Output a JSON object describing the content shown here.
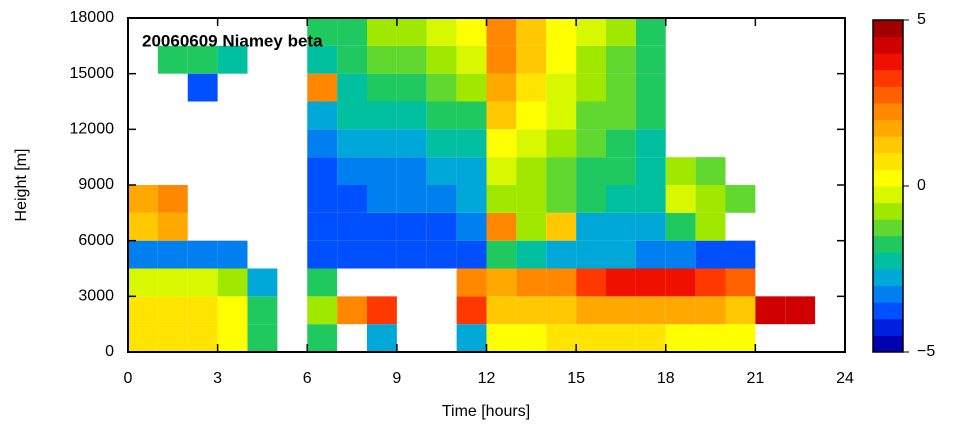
{
  "chart_data": {
    "type": "heatmap",
    "title": "20060609 Niamey beta",
    "x_label": "Time [hours]",
    "y_label": "Height [m]",
    "xlim": [
      0,
      24
    ],
    "xticks": [
      0,
      3,
      6,
      9,
      12,
      15,
      18,
      21,
      24
    ],
    "ylim": [
      0,
      18000
    ],
    "yticks": [
      0,
      3000,
      6000,
      9000,
      12000,
      15000,
      18000
    ],
    "xbins": [
      0,
      1,
      2,
      3,
      4,
      5,
      6,
      7,
      8,
      9,
      10,
      11,
      12,
      13,
      14,
      15,
      16,
      17,
      18,
      19,
      20,
      21,
      22,
      23,
      24
    ],
    "ybins": [
      0,
      1500,
      3000,
      4500,
      6000,
      7500,
      9000,
      10500,
      12000,
      13500,
      15000,
      16500,
      18000
    ],
    "z": [
      [
        0.5,
        0.5,
        0.5,
        0,
        -2,
        null,
        -2,
        null,
        -3,
        null,
        null,
        -3,
        0,
        0,
        0.5,
        0.5,
        0.5,
        0.5,
        0,
        0,
        0,
        null,
        null,
        null
      ],
      [
        0.5,
        0.5,
        0.5,
        0,
        -2,
        null,
        -1,
        2,
        3,
        null,
        null,
        3,
        1,
        1,
        1,
        1.5,
        1.5,
        1.5,
        1.5,
        1.5,
        1,
        4,
        4,
        null
      ],
      [
        -0.5,
        -0.5,
        -0.5,
        -1,
        -3,
        null,
        -2,
        null,
        null,
        null,
        null,
        2,
        1.5,
        2,
        2,
        3,
        3.5,
        3.5,
        3.5,
        3,
        2.5,
        null,
        null,
        null
      ],
      [
        -3.5,
        -3.5,
        -3.5,
        -3.5,
        null,
        null,
        -4,
        -4,
        -4,
        -4,
        -4,
        -4,
        -2,
        -2.5,
        -3,
        -3,
        -3,
        -3.5,
        -3.5,
        -4,
        -4,
        null,
        null,
        null
      ],
      [
        1,
        1.5,
        null,
        null,
        null,
        null,
        -4,
        -4,
        -4,
        -4,
        -4,
        -3.5,
        2,
        -1,
        1,
        -3,
        -3,
        -3,
        -2,
        -1,
        null,
        null,
        null,
        null
      ],
      [
        1.5,
        2,
        null,
        null,
        null,
        null,
        -4,
        -4,
        -3.5,
        -3.5,
        -3.5,
        -3,
        -1,
        -1,
        -1.5,
        -2,
        -2.5,
        -2.5,
        -0.5,
        -1,
        -1.5,
        null,
        null,
        null
      ],
      [
        null,
        null,
        null,
        null,
        null,
        null,
        -4,
        -3.5,
        -3.5,
        -3.5,
        -3,
        -3,
        -0.5,
        -1,
        -1.5,
        -2,
        -2,
        -2.5,
        -1,
        -1.5,
        null,
        null,
        null,
        null
      ],
      [
        null,
        null,
        null,
        null,
        null,
        null,
        -3.5,
        -3,
        -3,
        -3,
        -2.5,
        -2.5,
        0,
        -0.5,
        -1,
        -1.5,
        -2,
        -2.5,
        null,
        null,
        null,
        null,
        null,
        null
      ],
      [
        null,
        null,
        null,
        null,
        null,
        null,
        -3,
        -2.5,
        -2.5,
        -2.5,
        -2,
        -2,
        1,
        0,
        -0.5,
        -1.5,
        -1.5,
        -2,
        null,
        null,
        null,
        null,
        null,
        null
      ],
      [
        null,
        null,
        -4,
        null,
        null,
        null,
        2,
        -2.5,
        -2,
        -2,
        -1.5,
        -1,
        1.5,
        0.5,
        -0.5,
        -1,
        -1.5,
        -2,
        null,
        null,
        null,
        null,
        null,
        null
      ],
      [
        null,
        -2,
        -2,
        -2.5,
        null,
        null,
        -2.5,
        -2,
        -1.5,
        -1.5,
        -1,
        -0.5,
        2,
        1,
        0,
        -1,
        -1.5,
        -2,
        null,
        null,
        null,
        null,
        null,
        null
      ],
      [
        null,
        null,
        null,
        null,
        null,
        null,
        -2,
        -2,
        -1,
        -1,
        -0.5,
        0,
        2,
        1,
        0,
        -0.5,
        -1,
        -2,
        null,
        null,
        null,
        null,
        null,
        null
      ]
    ],
    "clim": [
      -5,
      5
    ],
    "cticks": [
      {
        "value": -5,
        "label": "−5"
      },
      0,
      5
    ],
    "colors": [
      "#0000b0",
      "#0020e0",
      "#0050ff",
      "#0080f0",
      "#00a8d8",
      "#00c0a0",
      "#20c860",
      "#60d830",
      "#a0e800",
      "#d8f800",
      "#ffff00",
      "#ffe400",
      "#ffc800",
      "#ffa800",
      "#ff8800",
      "#ff6000",
      "#ff3800",
      "#f01000",
      "#d00000",
      "#a00000"
    ]
  }
}
